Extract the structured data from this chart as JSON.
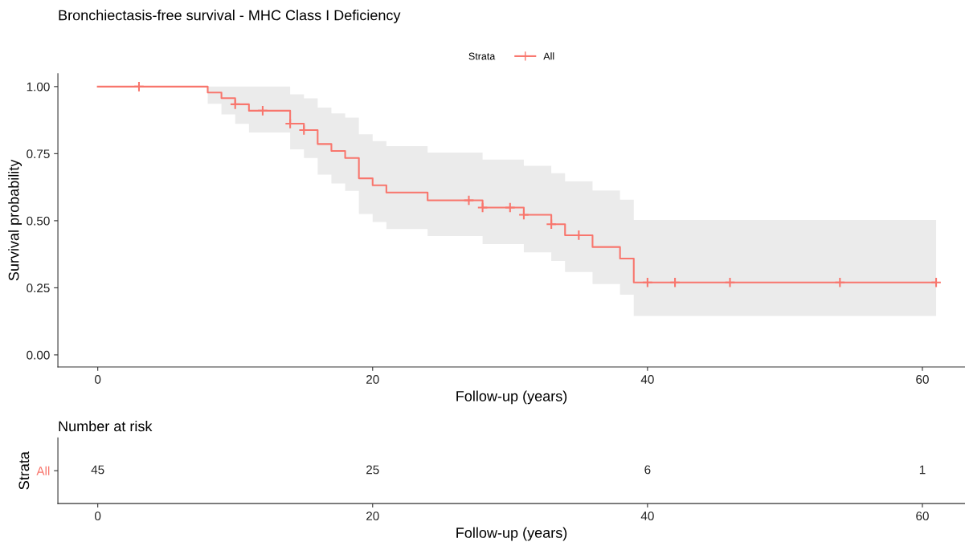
{
  "chart_data": [
    {
      "type": "step",
      "title": "Bronchiectasis-free survival - MHC Class I Deficiency",
      "xlabel": "Follow-up (years)",
      "ylabel": "Survival probability",
      "legend_title": "Strata",
      "legend": "top",
      "xlim": [
        -2.9,
        63.1
      ],
      "xticks": [
        0,
        20,
        40,
        60
      ],
      "ylim": [
        -0.045,
        1.048
      ],
      "yticks": [
        {
          "value": 0,
          "label": "0.00"
        },
        {
          "value": 0.25,
          "label": "0.25"
        },
        {
          "value": 0.5,
          "label": "0.50"
        },
        {
          "value": 0.75,
          "label": "0.75"
        },
        {
          "value": 1,
          "label": "1.00"
        }
      ],
      "grid": false,
      "series": [
        {
          "name": "All",
          "type": "step",
          "color": "#f8766d",
          "line_style": "solid",
          "x": [
            0,
            8,
            9,
            10,
            11,
            14,
            15,
            16,
            17,
            18,
            19,
            20,
            21,
            24,
            28,
            31,
            33,
            34,
            36,
            38,
            39,
            61
          ],
          "values": [
            1,
            0.978,
            0.957,
            0.934,
            0.91,
            0.862,
            0.838,
            0.786,
            0.76,
            0.734,
            0.658,
            0.632,
            0.605,
            0.576,
            0.549,
            0.522,
            0.487,
            0.446,
            0.402,
            0.359,
            0.27,
            0.27
          ],
          "upper": [
            1,
            1,
            1,
            1,
            1,
            0.971,
            0.956,
            0.922,
            0.9,
            0.884,
            0.822,
            0.797,
            0.778,
            0.754,
            0.728,
            0.705,
            0.677,
            0.647,
            0.613,
            0.578,
            0.503,
            0.503
          ],
          "lower": [
            1,
            0.936,
            0.896,
            0.861,
            0.829,
            0.766,
            0.734,
            0.672,
            0.639,
            0.611,
            0.525,
            0.495,
            0.469,
            0.443,
            0.413,
            0.382,
            0.35,
            0.309,
            0.264,
            0.224,
            0.145,
            0.145
          ]
        },
        {
          "type": "scatter",
          "color": "#f8766d",
          "marker": "cross",
          "x": [
            3,
            10,
            12,
            14,
            15,
            27,
            28,
            30,
            31,
            33,
            35,
            40,
            42,
            46,
            54,
            61
          ],
          "values": [
            1,
            0.934,
            0.91,
            0.862,
            0.838,
            0.576,
            0.549,
            0.549,
            0.522,
            0.487,
            0.446,
            0.27,
            0.27,
            0.27,
            0.27,
            0.27
          ]
        }
      ]
    },
    {
      "type": "heatmap",
      "title": "Number at risk",
      "xlabel": "Follow-up (years)",
      "ylabel": "Strata",
      "y_categories": [
        "All"
      ],
      "color": "#f8766d",
      "categories": [
        "0",
        "20",
        "40",
        "60"
      ],
      "cells": [
        [
          45,
          25,
          6,
          1
        ]
      ],
      "data_labels": true
    }
  ]
}
